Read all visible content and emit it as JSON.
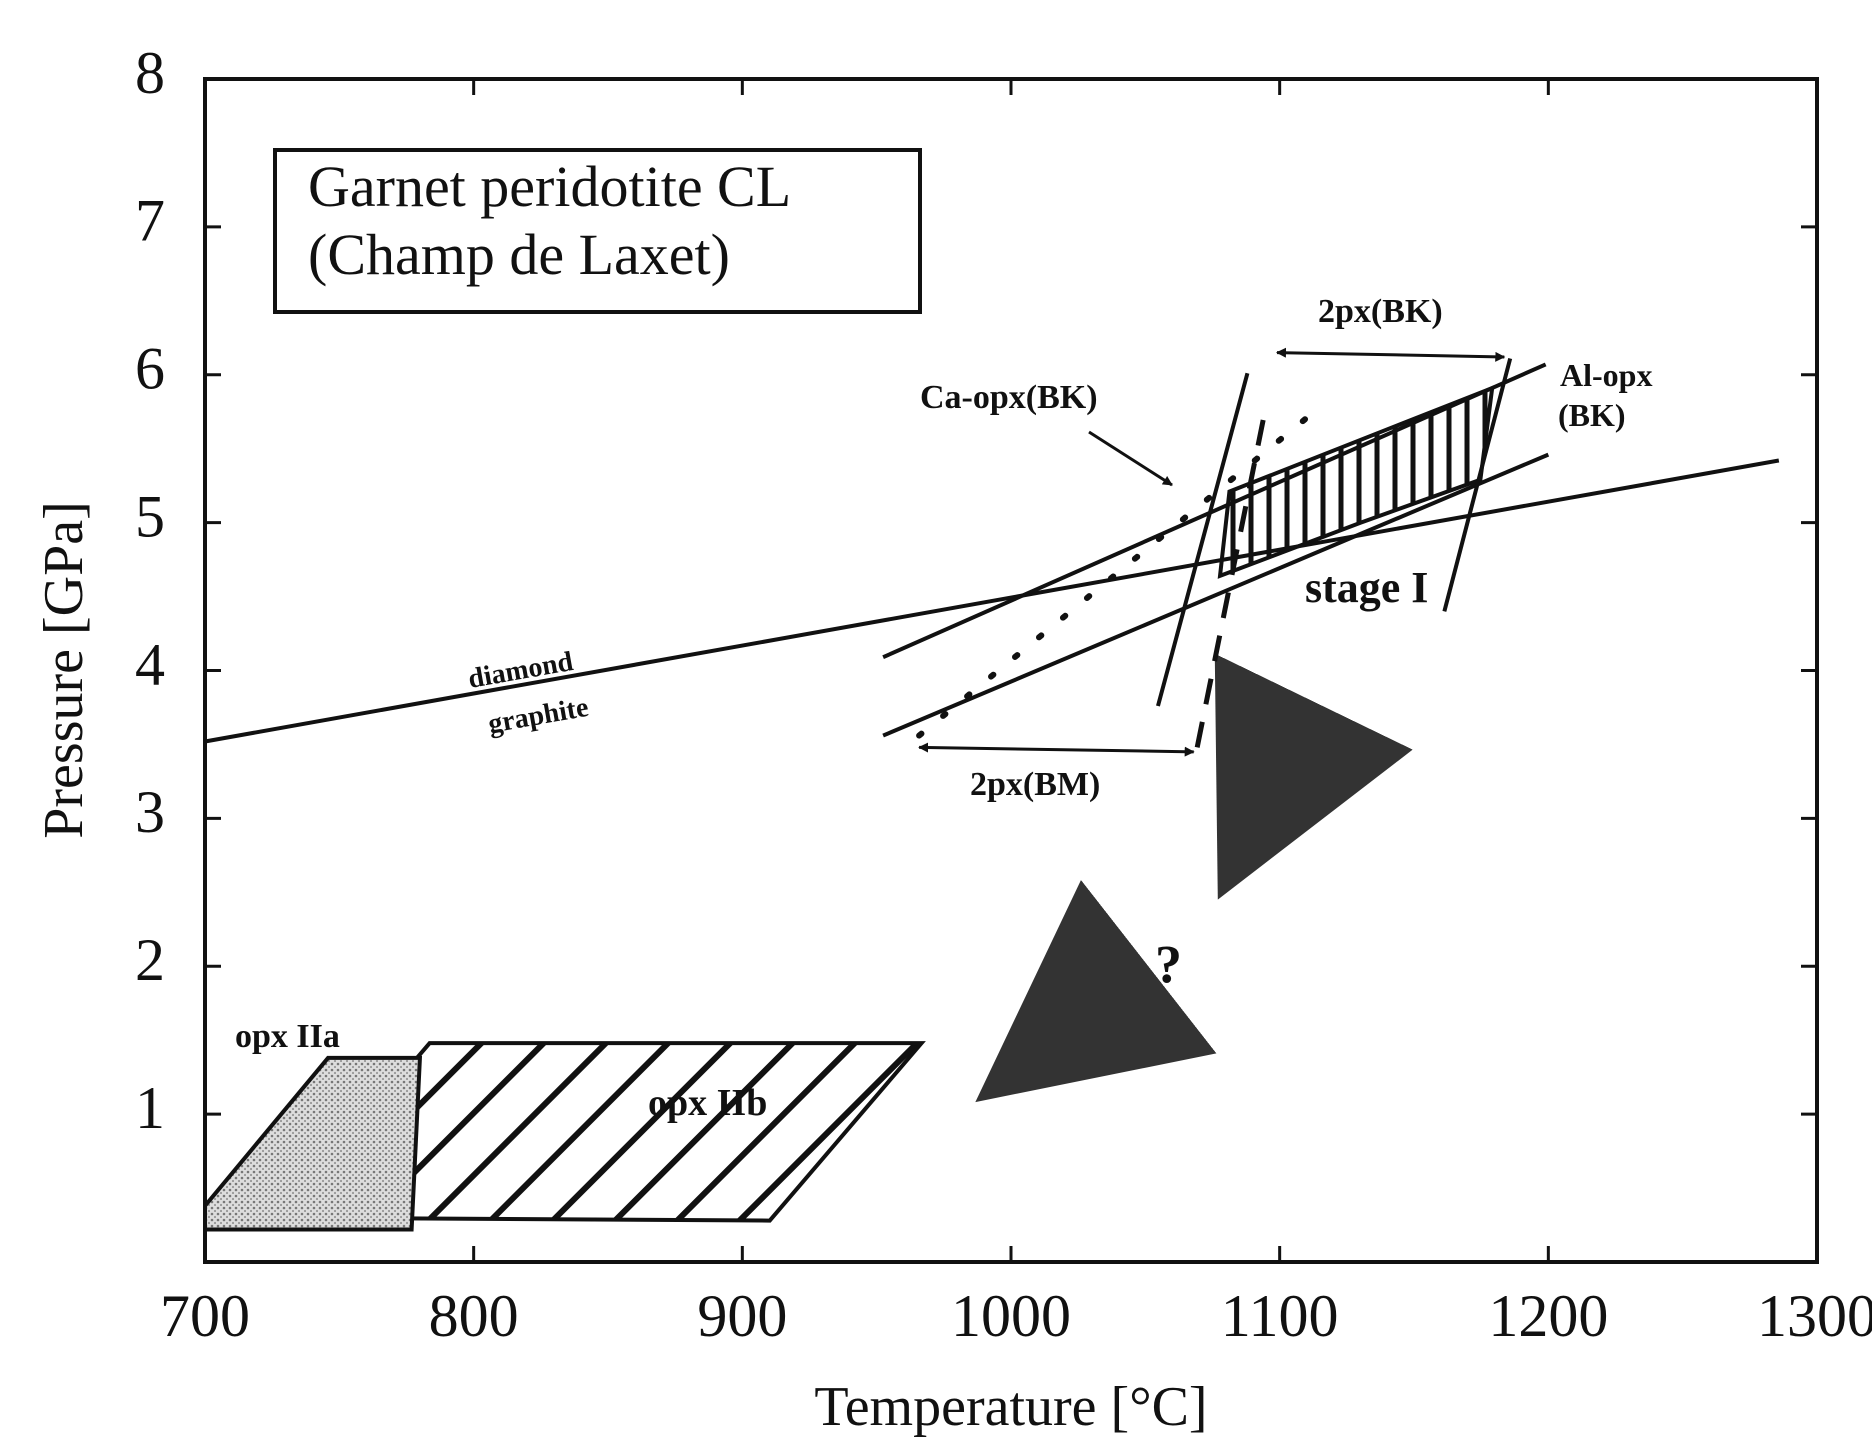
{
  "chart_data": {
    "type": "line",
    "title": "Garnet peridotite CL",
    "subtitle": "(Champ de Laxet)",
    "xlabel": "Temperature [°C]",
    "ylabel": "Pressure [GPa]",
    "xlim": [
      700,
      1300
    ],
    "ylim": [
      0,
      8
    ],
    "xticks": [
      700,
      800,
      900,
      1000,
      1100,
      1200,
      1300
    ],
    "yticks": [
      1,
      2,
      3,
      4,
      5,
      6,
      7,
      8
    ],
    "color": "#111111",
    "series": [
      {
        "x": [
          700,
          1285.8
        ],
        "values": [
          3.52,
          5.42
        ],
        "style": "solid"
      },
      {
        "x": [
          952.4,
          1199
        ],
        "values": [
          4.09,
          6.07
        ],
        "style": "solid"
      },
      {
        "x": [
          952.4,
          1200
        ],
        "values": [
          3.56,
          5.46
        ],
        "style": "solid"
      },
      {
        "x": [
          1054.7,
          1088
        ],
        "values": [
          3.76,
          6.01
        ],
        "style": "solid"
      },
      {
        "x": [
          1161.3,
          1185.8
        ],
        "values": [
          4.4,
          6.11
        ],
        "style": "solid"
      },
      {
        "x": [
          965.8,
          1116.9
        ],
        "values": [
          3.56,
          5.81
        ],
        "style": "dotted"
      },
      {
        "x": [
          1069.3,
          1094.7
        ],
        "values": [
          3.48,
          5.77
        ],
        "style": "dashed"
      },
      {
        "x": [
          1099,
          1183.6
        ],
        "values": [
          6.15,
          6.12
        ],
        "style": "double-arrow"
      },
      {
        "x": [
          965.8,
          1068
        ],
        "values": [
          3.48,
          3.45
        ],
        "style": "double-arrow"
      }
    ],
    "regions": [
      {
        "x": [
          1077.8,
          1081.3,
          1179.1,
          1174.7,
          1130.2
        ],
        "values": [
          4.64,
          5.21,
          5.91,
          5.29,
          5.0
        ],
        "fill": "vertical-hatch"
      },
      {
        "x": [
          700,
          700,
          745.8,
          780,
          776.9
        ],
        "values": [
          0.22,
          0.38,
          1.38,
          1.38,
          0.22
        ],
        "fill": "stipple"
      },
      {
        "x": [
          728,
          783.6,
          966.7,
          910.2
        ],
        "values": [
          0.3,
          1.48,
          1.48,
          0.28
        ],
        "fill": "diagonal-hatch"
      }
    ],
    "annotations": [
      "diamond",
      "graphite",
      "Ca-opx(BK)",
      "Al-opx",
      "(BK)",
      "2px(BK)",
      "2px(BM)",
      "stage I",
      "?",
      "opx IIa",
      "opx IIb"
    ]
  }
}
